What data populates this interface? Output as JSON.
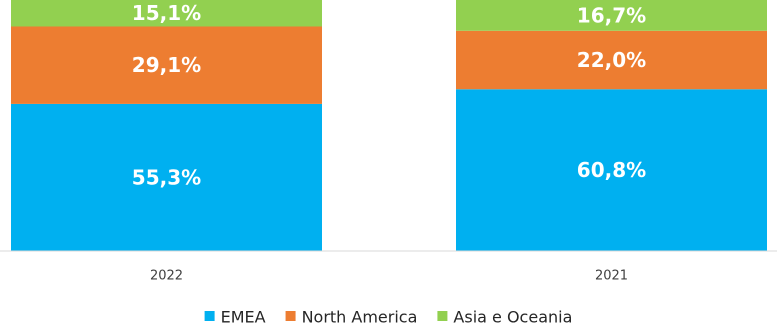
{
  "chart_data": {
    "type": "bar",
    "stacked": true,
    "normalized_percent": true,
    "categories": [
      "2022",
      "2021"
    ],
    "series": [
      {
        "name": "EMEA",
        "values": [
          55.3,
          60.8
        ],
        "labels": [
          "55,3%",
          "60,8%"
        ],
        "color": "#00b0f0"
      },
      {
        "name": "North America",
        "values": [
          29.1,
          22.0
        ],
        "labels": [
          "29,1%",
          "22,0%"
        ],
        "color": "#ed7d31"
      },
      {
        "name": "Asia e Oceania",
        "values": [
          15.1,
          16.7
        ],
        "labels": [
          "15,1%",
          "16,7%"
        ],
        "color": "#92d050"
      }
    ],
    "ylim": [
      0,
      100
    ],
    "grid": false,
    "legend_position": "bottom"
  }
}
